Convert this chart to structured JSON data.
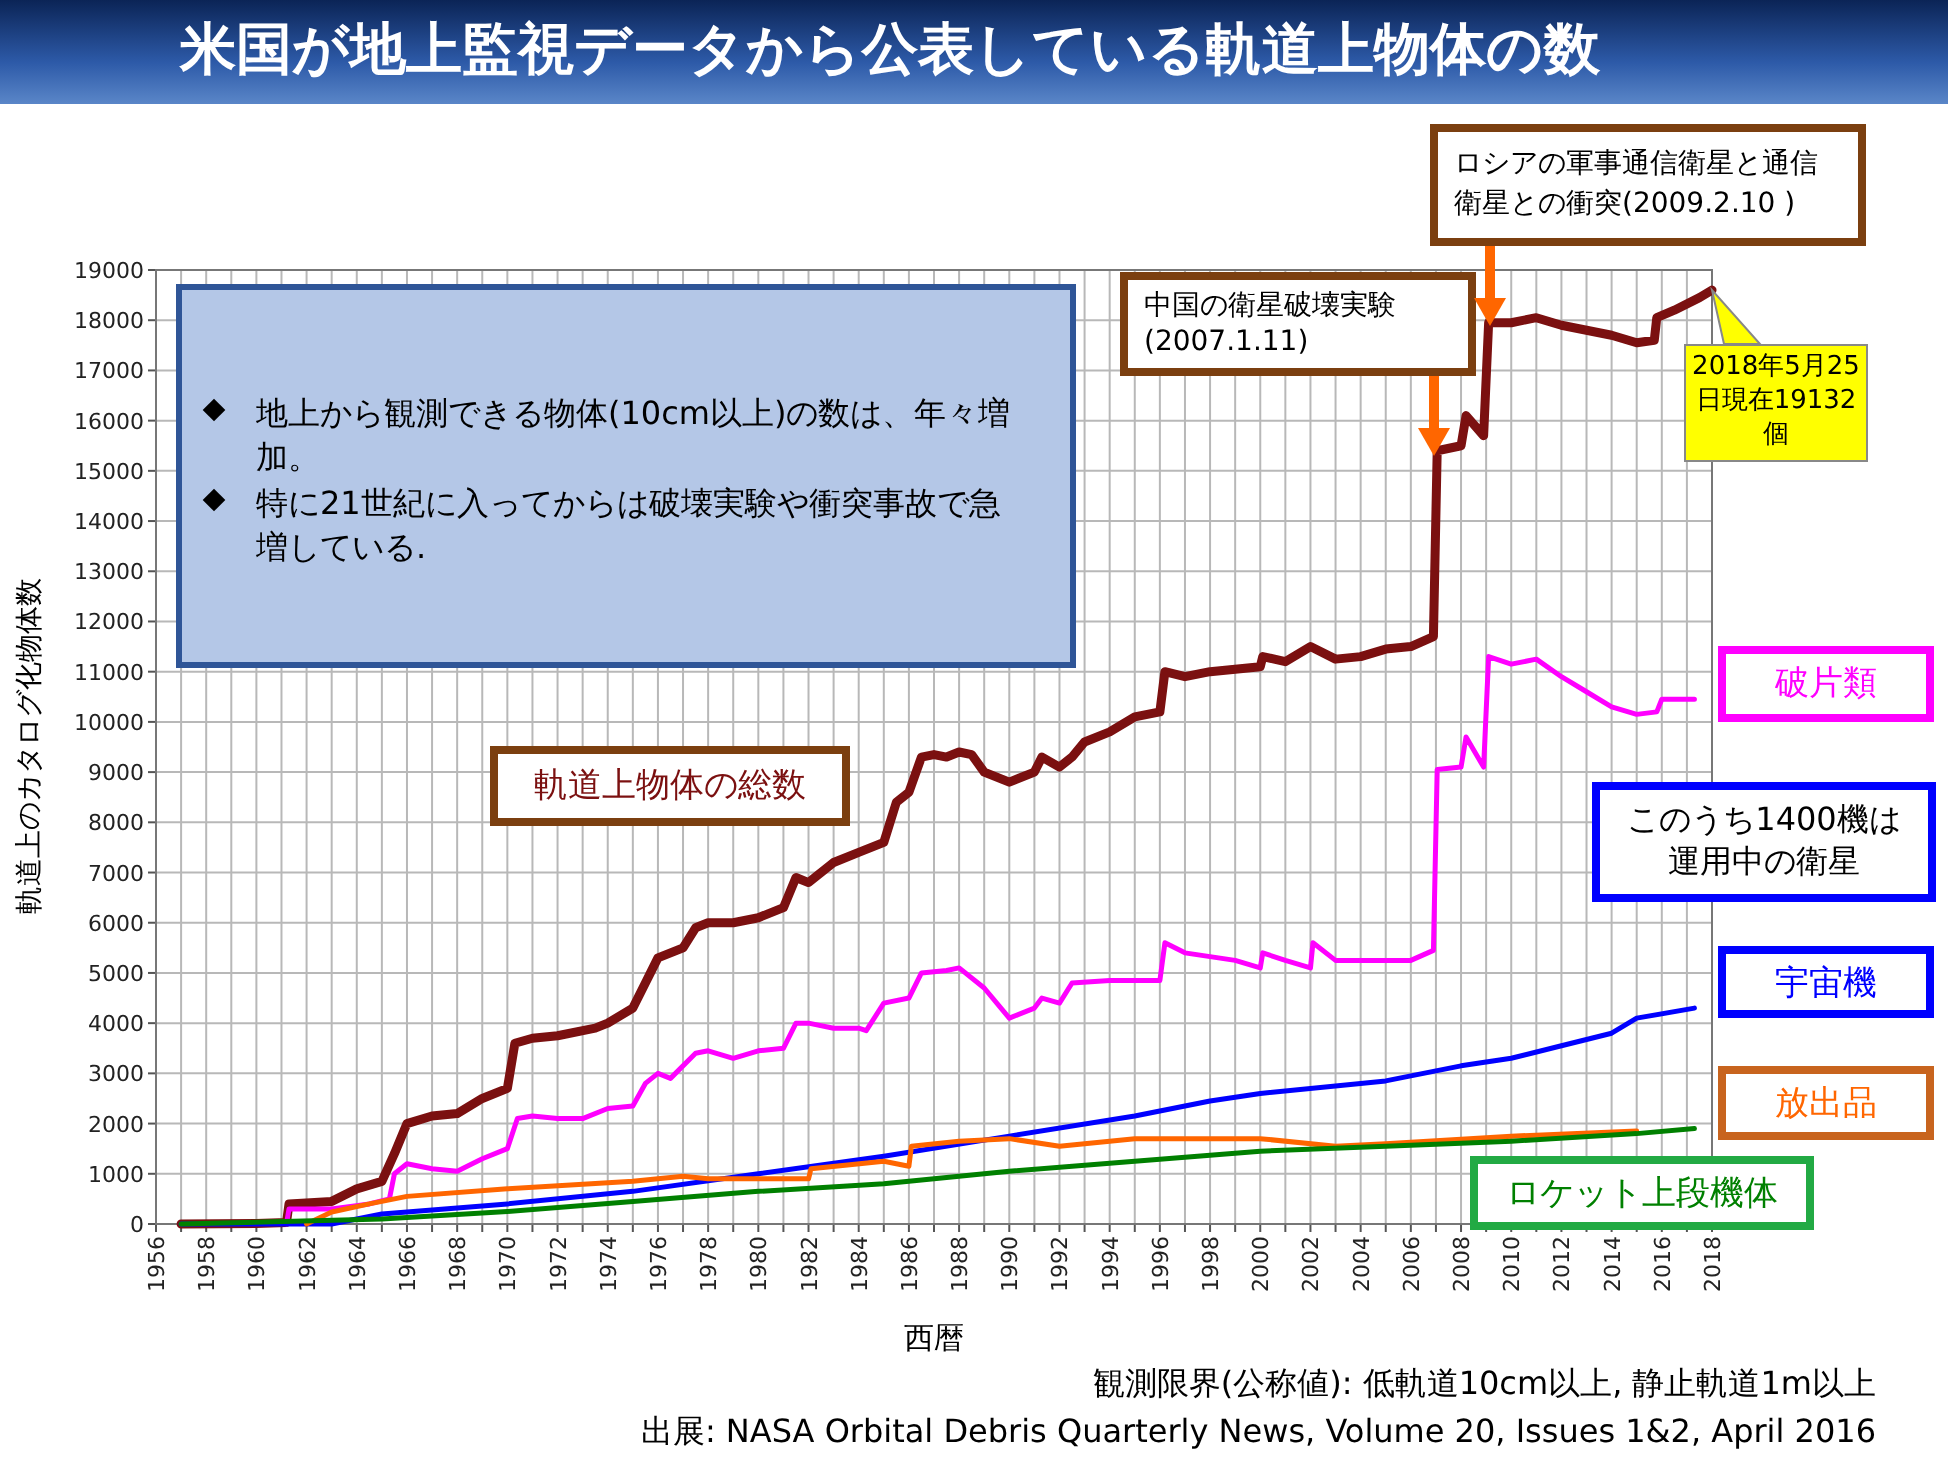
{
  "chart_data": {
    "type": "line",
    "title": "米国が地上監視データから公表している軌道上物体の数",
    "xlabel": "西暦",
    "ylabel": "軌道上のカタログ化物体数",
    "xlim": [
      1956,
      2018
    ],
    "xticks": [
      1956,
      {
        "value": 1957,
        "label": null
      },
      1958,
      {
        "value": 1959,
        "label": null
      },
      1960,
      {
        "value": 1961,
        "label": null
      },
      1962,
      {
        "value": 1963,
        "label": null
      },
      1964,
      {
        "value": 1965,
        "label": null
      },
      1966,
      {
        "value": 1967,
        "label": null
      },
      1968,
      {
        "value": 1969,
        "label": null
      },
      1970,
      {
        "value": 1971,
        "label": null
      },
      1972,
      {
        "value": 1973,
        "label": null
      },
      1974,
      {
        "value": 1975,
        "label": null
      },
      1976,
      {
        "value": 1977,
        "label": null
      },
      1978,
      {
        "value": 1979,
        "label": null
      },
      1980,
      {
        "value": 1981,
        "label": null
      },
      1982,
      {
        "value": 1983,
        "label": null
      },
      1984,
      {
        "value": 1985,
        "label": null
      },
      1986,
      {
        "value": 1987,
        "label": null
      },
      1988,
      {
        "value": 1989,
        "label": null
      },
      1990,
      {
        "value": 1991,
        "label": null
      },
      1992,
      {
        "value": 1993,
        "label": null
      },
      1994,
      {
        "value": 1995,
        "label": null
      },
      1996,
      {
        "value": 1997,
        "label": null
      },
      1998,
      {
        "value": 1999,
        "label": null
      },
      2000,
      {
        "value": 2001,
        "label": null
      },
      2002,
      {
        "value": 2003,
        "label": null
      },
      2004,
      {
        "value": 2005,
        "label": null
      },
      2006,
      {
        "value": 2007,
        "label": null
      },
      2008,
      {
        "value": 2009,
        "label": null
      },
      2010,
      {
        "value": 2011,
        "label": null
      },
      2012,
      {
        "value": 2013,
        "label": null
      },
      2014,
      {
        "value": 2015,
        "label": null
      },
      2016,
      {
        "value": 2017,
        "label": null
      },
      2018
    ],
    "ylim": [
      0,
      19000
    ],
    "yticks": [
      0,
      1000,
      2000,
      3000,
      4000,
      5000,
      6000,
      7000,
      8000,
      9000,
      10000,
      11000,
      12000,
      13000,
      14000,
      15000,
      16000,
      17000,
      18000,
      19000
    ],
    "grid": true,
    "series": [
      {
        "name": "軌道上物体の総数",
        "color": "#7b1010",
        "x": [
          1957,
          1960,
          1961.2,
          1961.3,
          1963,
          1964,
          1965,
          1965.5,
          1966,
          1967,
          1968,
          1969,
          1970,
          1970.3,
          1971,
          1972,
          1973.5,
          1974,
          1975,
          1975.5,
          1976,
          1977,
          1977.5,
          1978,
          1979,
          1980,
          1981,
          1981.5,
          1982,
          1983,
          1984,
          1985,
          1985.5,
          1986,
          1986.5,
          1987,
          1987.5,
          1988,
          1988.5,
          1989,
          1990,
          1991,
          1991.3,
          1992,
          1992.5,
          1993,
          1994,
          1995,
          1996,
          1996.2,
          1997,
          1998,
          1999,
          2000,
          2000.1,
          2001,
          2002,
          2003,
          2004,
          2005,
          2006,
          2006.9,
          2007.05,
          2008,
          2008.2,
          2008.9,
          2009.1,
          2010,
          2011,
          2012,
          2013,
          2014,
          2015,
          2015.7,
          2015.8,
          2016.5,
          2017.5,
          2018
        ],
        "values": [
          0,
          10,
          30,
          400,
          450,
          700,
          850,
          1400,
          2000,
          2150,
          2200,
          2500,
          2700,
          3600,
          3700,
          3750,
          3900,
          4000,
          4300,
          4800,
          5300,
          5500,
          5900,
          6000,
          6000,
          6100,
          6300,
          6900,
          6800,
          7200,
          7400,
          7600,
          8400,
          8600,
          9300,
          9350,
          9300,
          9400,
          9350,
          9000,
          8800,
          9000,
          9300,
          9100,
          9300,
          9600,
          9800,
          10100,
          10200,
          11000,
          10900,
          11000,
          11050,
          11100,
          11300,
          11200,
          11500,
          11250,
          11300,
          11450,
          11500,
          11700,
          15400,
          15500,
          16100,
          15700,
          17950,
          17950,
          18050,
          17900,
          17800,
          17700,
          17550,
          17600,
          18050,
          18200,
          18450,
          18600
        ]
      },
      {
        "name": "破片類",
        "color": "#ff00ff",
        "x": [
          1961.2,
          1961.3,
          1963,
          1964.5,
          1965.3,
          1965.5,
          1966,
          1967,
          1968,
          1969,
          1970,
          1970.4,
          1971,
          1972,
          1973,
          1974,
          1975,
          1975.5,
          1976,
          1976.5,
          1977.5,
          1978,
          1979,
          1980,
          1981,
          1981.5,
          1982,
          1983,
          1984,
          1984.3,
          1985,
          1986,
          1986.5,
          1987.5,
          1988,
          1989,
          1990,
          1991,
          1991.3,
          1992,
          1992.5,
          1994,
          1996,
          1996.2,
          1997,
          1999,
          2000,
          2000.1,
          2001,
          2002,
          2002.1,
          2003,
          2004,
          2006,
          2006.9,
          2007.05,
          2008,
          2008.2,
          2008.9,
          2009.1,
          2010,
          2011,
          2012,
          2013,
          2014,
          2015,
          2015.8,
          2016,
          2017.3
        ],
        "values": [
          0,
          300,
          300,
          400,
          500,
          1000,
          1200,
          1100,
          1050,
          1300,
          1500,
          2100,
          2150,
          2100,
          2100,
          2300,
          2350,
          2800,
          3000,
          2900,
          3400,
          3450,
          3300,
          3450,
          3500,
          4000,
          4000,
          3900,
          3900,
          3850,
          4400,
          4500,
          5000,
          5050,
          5100,
          4700,
          4100,
          4300,
          4500,
          4400,
          4800,
          4850,
          4850,
          5600,
          5400,
          5250,
          5100,
          5400,
          5250,
          5100,
          5600,
          5250,
          5250,
          5250,
          5450,
          9050,
          9100,
          9700,
          9100,
          11300,
          11150,
          11250,
          10900,
          10600,
          10300,
          10150,
          10200,
          10450,
          10450
        ]
      },
      {
        "name": "宇宙機",
        "color": "#0000ff",
        "x": [
          1957,
          1963,
          1965,
          1970,
          1975,
          1980,
          1985,
          1990,
          1995,
          1998,
          2000,
          2005,
          2008,
          2010,
          2012,
          2014,
          2015,
          2017.3
        ],
        "values": [
          0,
          0,
          200,
          400,
          650,
          1000,
          1350,
          1750,
          2150,
          2450,
          2600,
          2850,
          3150,
          3300,
          3550,
          3800,
          4100,
          4300
        ]
      },
      {
        "name": "放出品",
        "color": "#ff6600",
        "x": [
          1962,
          1963,
          1964.5,
          1966,
          1970,
          1975,
          1977,
          1978,
          1980,
          1982,
          1982.1,
          1985,
          1986,
          1986.1,
          1988,
          1990,
          1992,
          1995,
          2000,
          2003,
          2005,
          2010,
          2015
        ],
        "values": [
          0,
          240,
          400,
          550,
          700,
          850,
          950,
          900,
          900,
          900,
          1100,
          1250,
          1150,
          1550,
          1650,
          1700,
          1550,
          1700,
          1700,
          1550,
          1600,
          1750,
          1850
        ]
      },
      {
        "name": "ロケット上段機体",
        "color": "#008000",
        "x": [
          1957,
          1965,
          1970,
          1975,
          1980,
          1985,
          1990,
          1995,
          2000,
          2005,
          2010,
          2015,
          2017.3
        ],
        "values": [
          0,
          100,
          250,
          450,
          650,
          800,
          1050,
          1250,
          1450,
          1550,
          1650,
          1800,
          1900
        ]
      }
    ],
    "annotations": [
      "地上から観測できる物体(10cm以上)の数は、年々増加。",
      "特に21世紀に入ってからは破壊実験や衝突事故で急増している.",
      "中国の衛星破壊実験(2007.1.11)",
      "ロシアの軍事通信衛星と通信衛星との衝突(2009.2.10 )",
      {
        "text": "2018年5月25日現在19132個",
        "x": 2018,
        "y": 18600
      },
      "このうち1400機は運用中の衛星",
      "観測限界(公称値): 低軌道10cm以上, 静止軌道1m以上",
      "出展: NASA Orbital Debris Quarterly News, Volume 20, Issues  1&2, April 2016"
    ]
  }
}
